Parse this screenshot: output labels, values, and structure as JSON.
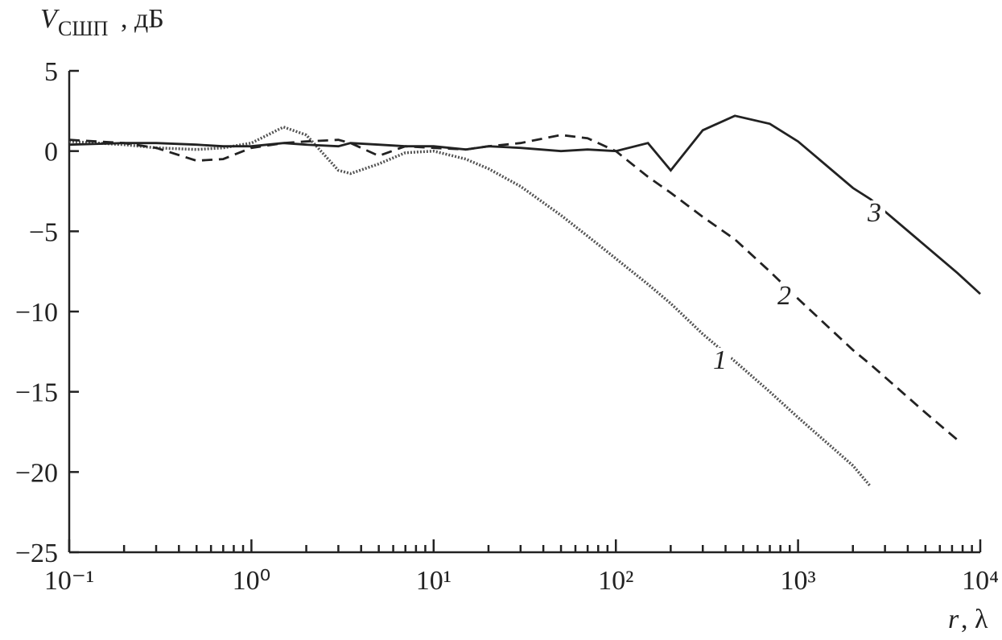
{
  "chart_data": {
    "type": "line",
    "y_label": {
      "symbol": "V",
      "subscript": "СШП",
      "unit": ", дБ"
    },
    "x_label": {
      "symbol": "r",
      "unit": ", λ"
    },
    "x_scale": "log",
    "x": [
      0.1,
      0.2,
      0.3,
      0.5,
      0.7,
      1,
      1.5,
      2,
      3,
      3.5,
      5,
      7,
      10,
      15,
      20,
      30,
      50,
      70,
      100,
      150,
      200,
      300,
      450,
      700,
      1000,
      2000,
      2500,
      5000,
      7500,
      10000
    ],
    "series": [
      {
        "name": "1",
        "color": "#555555",
        "dash": "dotted",
        "values": [
          0.6,
          0.4,
          0.2,
          0.1,
          0.2,
          0.5,
          1.5,
          1.0,
          -1.2,
          -1.4,
          -0.8,
          -0.1,
          0,
          -0.5,
          -1.1,
          -2.2,
          -4.0,
          -5.3,
          -6.7,
          -8.3,
          -9.5,
          -11.4,
          -13.1,
          -15.0,
          -16.6,
          -19.6,
          -20.9,
          null,
          null,
          null
        ]
      },
      {
        "name": "2",
        "color": "#222222",
        "dash": "dashed",
        "values": [
          0.7,
          0.5,
          0.2,
          -0.6,
          -0.5,
          0.2,
          0.5,
          0.6,
          0.7,
          0.5,
          -0.3,
          0.3,
          0.2,
          0.1,
          0.3,
          0.5,
          1.0,
          0.8,
          0.0,
          -1.6,
          -2.6,
          -4.1,
          -5.5,
          -7.5,
          -9.2,
          -12.4,
          -13.3,
          -16.3,
          -18.0,
          null
        ]
      },
      {
        "name": "3",
        "color": "#222222",
        "dash": "solid",
        "values": [
          0.4,
          0.5,
          0.5,
          0.4,
          0.3,
          0.3,
          0.5,
          0.4,
          0.3,
          0.5,
          0.4,
          0.3,
          0.3,
          0.1,
          0.3,
          0.2,
          0.0,
          0.1,
          0.0,
          0.5,
          -1.2,
          1.3,
          2.2,
          1.7,
          0.6,
          -2.3,
          -3.0,
          -5.9,
          -7.6,
          -8.9
        ]
      }
    ],
    "xlim": [
      0.1,
      10000
    ],
    "xticks": [
      {
        "value": 0.1,
        "label": "10⁻¹"
      },
      {
        "value": 1,
        "label": "10⁰"
      },
      {
        "value": 10,
        "label": "10¹"
      },
      {
        "value": 100,
        "label": "10²"
      },
      {
        "value": 1000,
        "label": "10³"
      },
      {
        "value": 10000,
        "label": "10⁴"
      }
    ],
    "ylim": [
      -25,
      5
    ],
    "yticks": [
      {
        "value": -25,
        "label": "−25"
      },
      {
        "value": -20,
        "label": "−20"
      },
      {
        "value": -15,
        "label": "−15"
      },
      {
        "value": -10,
        "label": "−10"
      },
      {
        "value": -5,
        "label": "−5"
      },
      0,
      5
    ],
    "grid": false
  }
}
